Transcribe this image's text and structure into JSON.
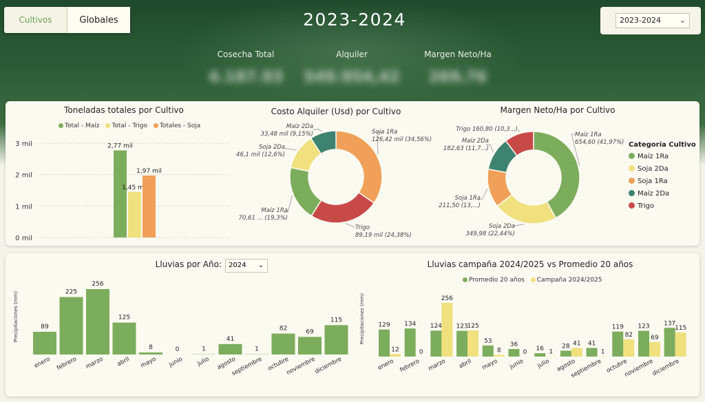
{
  "header": {
    "tabs": [
      {
        "label": "Cultivos",
        "active": false
      },
      {
        "label": "Globales",
        "active": true
      }
    ],
    "title": "2023-2024",
    "year_select": "2023-2024"
  },
  "kpis": [
    {
      "label": "Cosecha Total",
      "value": "4.187.93"
    },
    {
      "label": "Alquiler",
      "value": "549.954,42"
    },
    {
      "label": "Margen Neto/Ha",
      "value": "269,76"
    }
  ],
  "colors": {
    "maiz1": "#7cad5c",
    "trigo_bar": "#efe17e",
    "soja1": "#f0a058",
    "maiz2": "#3e8270",
    "trigo": "#c84a48",
    "soja2": "#f0e07e"
  },
  "category_legend": {
    "title": "Categoría Cultivo",
    "items": [
      {
        "label": "Maíz 1Ra",
        "color": "#7cad5c"
      },
      {
        "label": "Soja 2Da",
        "color": "#f0e07e"
      },
      {
        "label": "Soja 1Ra",
        "color": "#f0a058"
      },
      {
        "label": "Maíz 2Da",
        "color": "#3e8270"
      },
      {
        "label": "Trigo",
        "color": "#c84a48"
      }
    ]
  },
  "rain_year": "2024",
  "chart_data": [
    {
      "type": "bar",
      "title": "Toneladas totales por Cultivo",
      "series": [
        {
          "name": "Total - Maíz",
          "values": [
            2.77
          ],
          "label": "2,77 mil",
          "color": "#7cad5c"
        },
        {
          "name": "Total - Trigo",
          "values": [
            1.45
          ],
          "label": "1,45 mil",
          "color": "#efe17e"
        },
        {
          "name": "Totales - Soja",
          "values": [
            1.97
          ],
          "label": "1,97 mil",
          "color": "#f0a058"
        }
      ],
      "yticks": [
        "0 mil",
        "1 mil",
        "2 mil",
        "3 mil"
      ],
      "ylim": [
        0,
        3
      ]
    },
    {
      "type": "pie",
      "title": "Costo Alquiler (Usd) por Cultivo",
      "slices": [
        {
          "name": "Soja 1Ra",
          "value": 34.56,
          "label_l1": "Soja 1Ra",
          "label_l2": "126,42 mil (34,56%)",
          "color": "#f0a058"
        },
        {
          "name": "Trigo",
          "value": 24.38,
          "label_l1": "Trigo",
          "label_l2": "89,19 mil (24,38%)",
          "color": "#c84a48"
        },
        {
          "name": "Maíz 1Ra",
          "value": 19.3,
          "label_l1": "Maíz 1Ra",
          "label_l2": "70,61 ... (19,3%)",
          "color": "#7cad5c"
        },
        {
          "name": "Soja 2Da",
          "value": 12.6,
          "label_l1": "Soja 2Da",
          "label_l2": "46,1 mil (12,6%)",
          "color": "#f0e07e"
        },
        {
          "name": "Maíz 2Da",
          "value": 9.15,
          "label_l1": "Maíz 2Da",
          "label_l2": "33,48 mil (9,15%)",
          "color": "#3e8270"
        }
      ]
    },
    {
      "type": "pie",
      "title": "Margen Neto/Ha por Cultivo",
      "slices": [
        {
          "name": "Maíz 1Ra",
          "value": 41.97,
          "label_l1": "Maíz 1Ra",
          "label_l2": "654,60 (41,97%)",
          "color": "#7cad5c"
        },
        {
          "name": "Soja 2Da",
          "value": 22.44,
          "label_l1": "Soja 2Da",
          "label_l2": "349,98 (22,44%)",
          "color": "#f0e07e"
        },
        {
          "name": "Soja 1Ra",
          "value": 13.56,
          "label_l1": "Soja 1Ra",
          "label_l2": "211,50 (13,...)",
          "color": "#f0a058"
        },
        {
          "name": "Maíz 2Da",
          "value": 11.72,
          "label_l1": "Maíz 2Da",
          "label_l2": "182,63 (11,7...)",
          "color": "#3e8270"
        },
        {
          "name": "Trigo",
          "value": 10.31,
          "label_l1": "Trigo 160,80 (10,3...)",
          "label_l2": "",
          "color": "#c84a48"
        }
      ]
    },
    {
      "type": "bar",
      "title": "Lluvias por Año:",
      "ylabel": "Precipitaciones (mm)",
      "categories": [
        "enero",
        "febrero",
        "marzo",
        "abril",
        "mayo",
        "junio",
        "julio",
        "agosto",
        "septiembre",
        "octubre",
        "noviembre",
        "diciembre"
      ],
      "values": [
        89,
        225,
        256,
        125,
        8,
        0,
        1,
        41,
        1,
        82,
        69,
        115
      ],
      "color": "#7cad5c"
    },
    {
      "type": "bar",
      "title": "Lluvias campaña 2024/2025 vs Promedio 20 años",
      "ylabel": "Precipitaciones (mm)",
      "categories": [
        "enero",
        "febrero",
        "marzo",
        "abril",
        "mayo",
        "junio",
        "julio",
        "agosto",
        "septiembre",
        "octubre",
        "noviembre",
        "diciembre"
      ],
      "series": [
        {
          "name": "Promedio 20 años",
          "values": [
            129,
            134,
            124,
            123,
            53,
            36,
            16,
            28,
            41,
            119,
            123,
            137
          ],
          "color": "#7cad5c"
        },
        {
          "name": "Campaña 2024/2025",
          "values": [
            12,
            0,
            256,
            125,
            8,
            0,
            1,
            41,
            1,
            82,
            69,
            115
          ],
          "color": "#f0e07e"
        }
      ]
    }
  ]
}
